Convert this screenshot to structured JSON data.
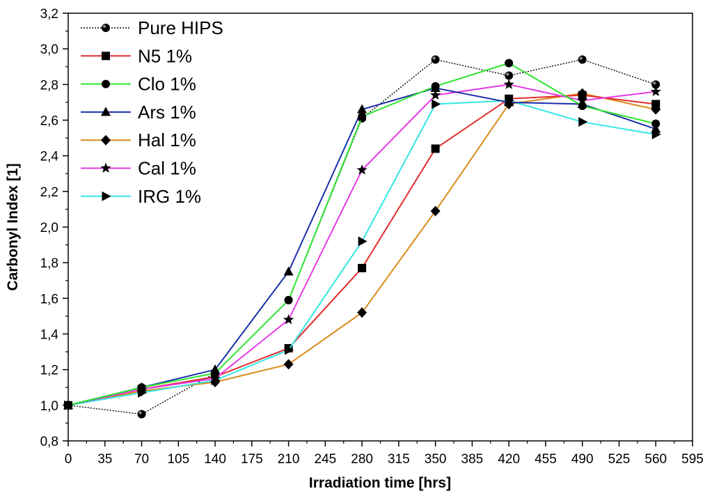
{
  "chart_data": {
    "type": "line",
    "xlabel": "Irradiation time [hrs]",
    "ylabel": "Carbonyl Index [1]",
    "xlim": [
      0,
      595
    ],
    "ylim": [
      0.8,
      3.2
    ],
    "x_ticks": [
      0,
      35,
      70,
      105,
      140,
      175,
      210,
      245,
      280,
      315,
      350,
      385,
      420,
      455,
      490,
      525,
      560,
      595
    ],
    "y_ticks": [
      "0,8",
      "1,0",
      "1,2",
      "1,4",
      "1,6",
      "1,8",
      "2,0",
      "2,2",
      "2,4",
      "2,6",
      "2,8",
      "3,0",
      "3,2"
    ],
    "legend_position": "top-left",
    "grid": false,
    "x": [
      0,
      70,
      140,
      210,
      280,
      350,
      420,
      490,
      560
    ],
    "series": [
      {
        "name": "Pure HIPS",
        "color": "#000000",
        "marker": "half-circle",
        "dashed": true,
        "values": [
          1.0,
          0.95,
          1.18,
          1.59,
          2.61,
          2.94,
          2.85,
          2.94,
          2.8
        ]
      },
      {
        "name": "N5 1%",
        "color": "#e32b2b",
        "marker": "square",
        "values": [
          1.0,
          1.09,
          1.16,
          1.32,
          1.77,
          2.44,
          2.72,
          2.74,
          2.69
        ]
      },
      {
        "name": "Clo 1%",
        "color": "#2ee62e",
        "marker": "circle",
        "values": [
          1.0,
          1.1,
          1.18,
          1.59,
          2.62,
          2.79,
          2.92,
          2.68,
          2.58
        ]
      },
      {
        "name": "Ars 1%",
        "color": "#1a2ea8",
        "marker": "triangle",
        "values": [
          1.0,
          1.1,
          1.2,
          1.75,
          2.66,
          2.78,
          2.7,
          2.69,
          2.55
        ]
      },
      {
        "name": "Hal 1%",
        "color": "#d98a1a",
        "marker": "diamond",
        "values": [
          1.0,
          1.08,
          1.13,
          1.23,
          1.52,
          2.09,
          2.69,
          2.75,
          2.66
        ]
      },
      {
        "name": "Cal 1%",
        "color": "#e639e6",
        "marker": "star",
        "values": [
          1.0,
          1.09,
          1.15,
          1.48,
          2.32,
          2.74,
          2.8,
          2.71,
          2.76
        ]
      },
      {
        "name": "IRG 1%",
        "color": "#33e6e6",
        "marker": "right-triangle",
        "values": [
          1.0,
          1.07,
          1.14,
          1.31,
          1.92,
          2.69,
          2.71,
          2.59,
          2.52
        ]
      }
    ]
  }
}
